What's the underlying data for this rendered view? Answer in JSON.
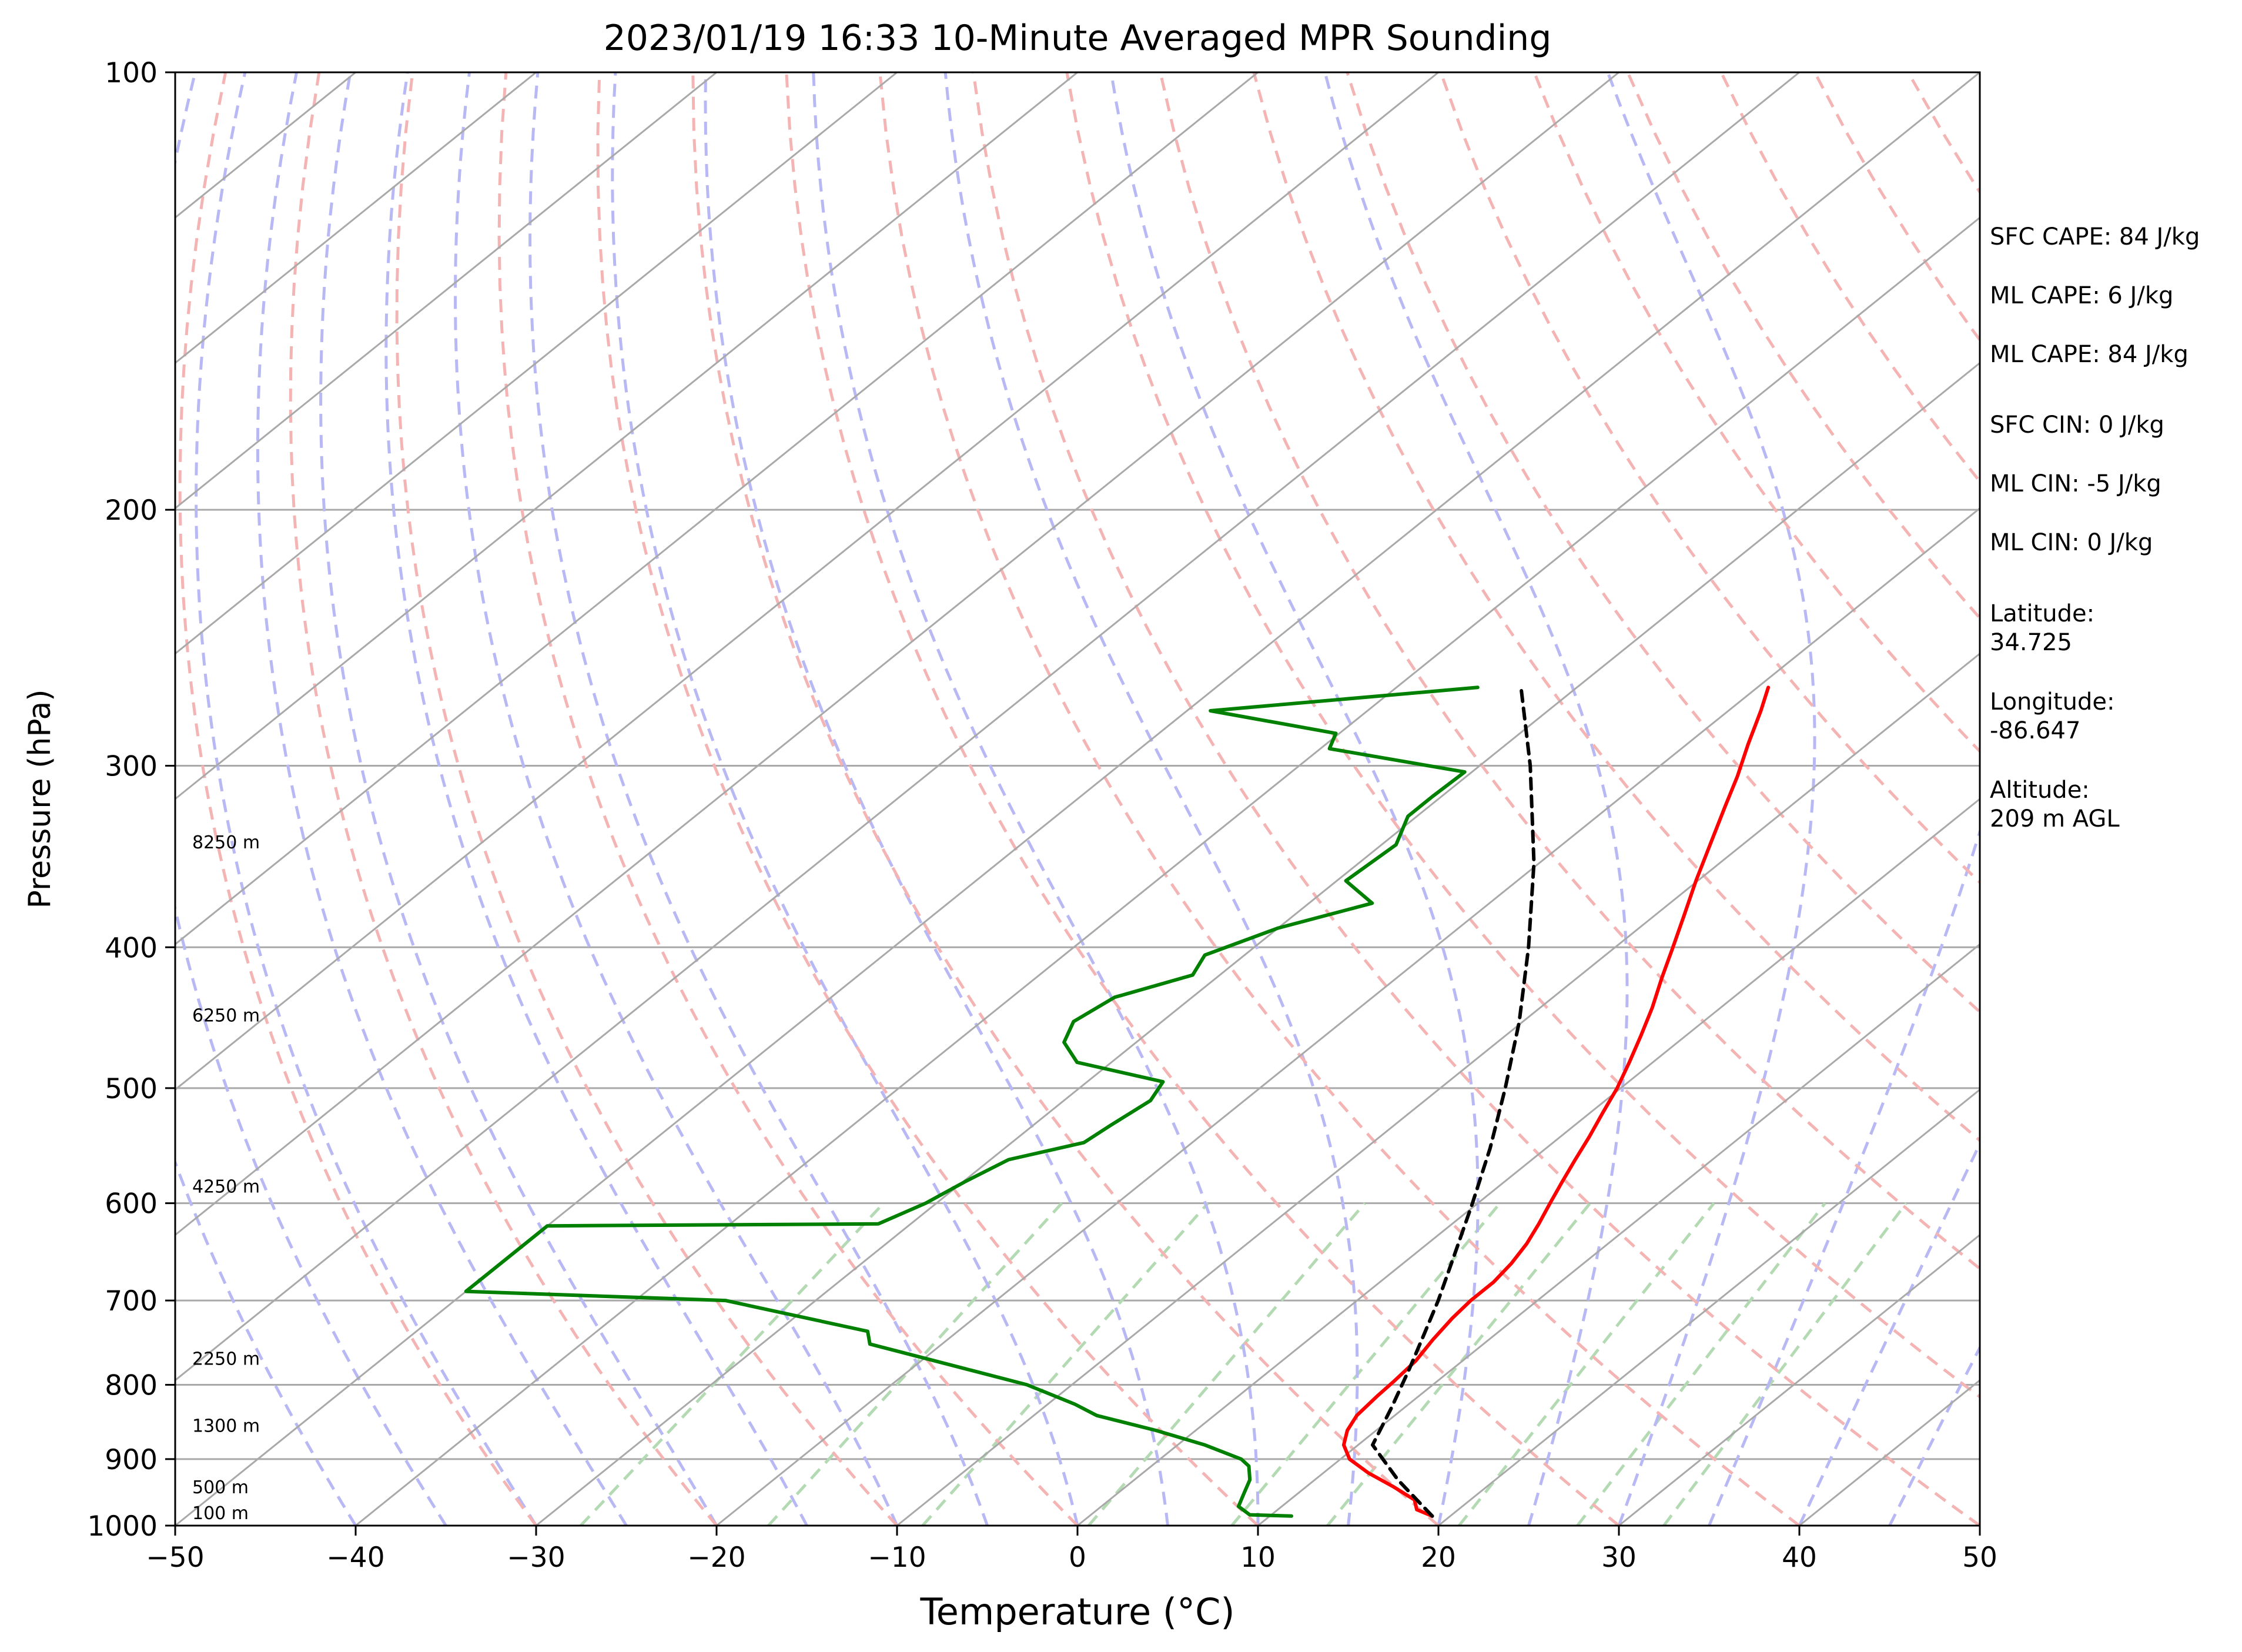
{
  "chart_data": {
    "type": "line",
    "title": "2023/01/19 16:33 10-Minute Averaged MPR Sounding",
    "xlabel": "Temperature (°C)",
    "ylabel": "Pressure (hPa)",
    "xlim": [
      -50,
      50
    ],
    "ylim": [
      1000,
      100
    ],
    "yscale": "log",
    "skew": "skew-T",
    "grid": true,
    "x_ticks": [
      "−50",
      "−40",
      "−30",
      "−20",
      "−10",
      "0",
      "10",
      "20",
      "30",
      "40",
      "50"
    ],
    "y_ticks": [
      "100",
      "200",
      "300",
      "400",
      "500",
      "600",
      "700",
      "800",
      "900",
      "1000"
    ],
    "series": [
      {
        "color": "#ff0000",
        "points": [
          {
            "p": 985,
            "t": 19.0
          },
          {
            "p": 975,
            "t": 17.7
          },
          {
            "p": 960,
            "t": 16.9
          },
          {
            "p": 940,
            "t": 14.8
          },
          {
            "p": 920,
            "t": 12.5
          },
          {
            "p": 900,
            "t": 10.5
          },
          {
            "p": 880,
            "t": 9.2
          },
          {
            "p": 860,
            "t": 8.4
          },
          {
            "p": 840,
            "t": 7.9
          },
          {
            "p": 815,
            "t": 7.7
          },
          {
            "p": 795,
            "t": 7.6
          },
          {
            "p": 770,
            "t": 7.4
          },
          {
            "p": 745,
            "t": 6.9
          },
          {
            "p": 720,
            "t": 6.5
          },
          {
            "p": 700,
            "t": 6.3
          },
          {
            "p": 680,
            "t": 6.3
          },
          {
            "p": 660,
            "t": 6.0
          },
          {
            "p": 640,
            "t": 5.5
          },
          {
            "p": 620,
            "t": 4.8
          },
          {
            "p": 600,
            "t": 4.0
          },
          {
            "p": 580,
            "t": 3.2
          },
          {
            "p": 560,
            "t": 2.4
          },
          {
            "p": 540,
            "t": 1.6
          },
          {
            "p": 520,
            "t": 0.7
          },
          {
            "p": 500,
            "t": -0.2
          },
          {
            "p": 480,
            "t": -1.3
          },
          {
            "p": 460,
            "t": -2.5
          },
          {
            "p": 440,
            "t": -3.8
          },
          {
            "p": 420,
            "t": -5.3
          },
          {
            "p": 400,
            "t": -6.8
          },
          {
            "p": 380,
            "t": -8.4
          },
          {
            "p": 360,
            "t": -10.1
          },
          {
            "p": 340,
            "t": -11.8
          },
          {
            "p": 320,
            "t": -13.6
          },
          {
            "p": 305,
            "t": -15.0
          },
          {
            "p": 290,
            "t": -16.6
          },
          {
            "p": 275,
            "t": -18.2
          },
          {
            "p": 265,
            "t": -19.4
          }
        ]
      },
      {
        "color": "#008000",
        "points": [
          {
            "p": 985,
            "t": 11.2
          },
          {
            "p": 983,
            "t": 8.8
          },
          {
            "p": 970,
            "t": 7.6
          },
          {
            "p": 950,
            "t": 7.0
          },
          {
            "p": 930,
            "t": 6.4
          },
          {
            "p": 910,
            "t": 5.4
          },
          {
            "p": 900,
            "t": 4.5
          },
          {
            "p": 880,
            "t": 1.5
          },
          {
            "p": 860,
            "t": -2.2
          },
          {
            "p": 840,
            "t": -6.5
          },
          {
            "p": 825,
            "t": -8.5
          },
          {
            "p": 800,
            "t": -12.5
          },
          {
            "p": 780,
            "t": -17.0
          },
          {
            "p": 750,
            "t": -24.0
          },
          {
            "p": 735,
            "t": -25.0
          },
          {
            "p": 700,
            "t": -35.0
          },
          {
            "p": 690,
            "t": -50.0
          },
          {
            "p": 622,
            "t": -50.0
          },
          {
            "p": 620,
            "t": -31.8
          },
          {
            "p": 600,
            "t": -30.6
          },
          {
            "p": 580,
            "t": -29.9
          },
          {
            "p": 560,
            "t": -29.0
          },
          {
            "p": 545,
            "t": -26.0
          },
          {
            "p": 530,
            "t": -25.7
          },
          {
            "p": 510,
            "t": -25.2
          },
          {
            "p": 495,
            "t": -25.8
          },
          {
            "p": 480,
            "t": -31.9
          },
          {
            "p": 465,
            "t": -34.0
          },
          {
            "p": 450,
            "t": -34.9
          },
          {
            "p": 433,
            "t": -34.3
          },
          {
            "p": 418,
            "t": -31.5
          },
          {
            "p": 405,
            "t": -32.2
          },
          {
            "p": 388,
            "t": -30.0
          },
          {
            "p": 373,
            "t": -26.5
          },
          {
            "p": 360,
            "t": -29.5
          },
          {
            "p": 340,
            "t": -29.2
          },
          {
            "p": 325,
            "t": -30.5
          },
          {
            "p": 315,
            "t": -30.5
          },
          {
            "p": 303,
            "t": -30.4
          },
          {
            "p": 292,
            "t": -39.5
          },
          {
            "p": 285,
            "t": -40.2
          },
          {
            "p": 275,
            "t": -48.7
          },
          {
            "p": 265,
            "t": -35.5
          }
        ]
      },
      {
        "color": "#000000",
        "dashed": true,
        "points": [
          {
            "p": 985,
            "t": 19.0
          },
          {
            "p": 930,
            "t": 14.6
          },
          {
            "p": 880,
            "t": 10.8
          },
          {
            "p": 830,
            "t": 9.3
          },
          {
            "p": 780,
            "t": 7.6
          },
          {
            "p": 740,
            "t": 6.1
          },
          {
            "p": 700,
            "t": 4.5
          },
          {
            "p": 650,
            "t": 2.2
          },
          {
            "p": 600,
            "t": -0.3
          },
          {
            "p": 550,
            "t": -3.1
          },
          {
            "p": 500,
            "t": -6.4
          },
          {
            "p": 450,
            "t": -10.2
          },
          {
            "p": 400,
            "t": -14.8
          },
          {
            "p": 350,
            "t": -20.3
          },
          {
            "p": 300,
            "t": -27.2
          },
          {
            "p": 265,
            "t": -33.1
          }
        ]
      }
    ],
    "height_labels": [
      {
        "p": 990,
        "text": "100 m"
      },
      {
        "p": 950,
        "text": "500 m"
      },
      {
        "p": 862,
        "text": "1300 m"
      },
      {
        "p": 775,
        "text": "2250 m"
      },
      {
        "p": 590,
        "text": "4250 m"
      },
      {
        "p": 450,
        "text": "6250 m"
      },
      {
        "p": 342,
        "text": "8250 m"
      }
    ],
    "info_panel": {
      "sfc_cape": "SFC CAPE: 84 J/kg",
      "ml_cape_1": "ML CAPE: 6 J/kg",
      "ml_cape_2": "ML CAPE: 84 J/kg",
      "sfc_cin": "SFC CIN: 0 J/kg",
      "ml_cin_1": "ML CIN: -5 J/kg",
      "ml_cin_2": "ML CIN: 0 J/kg",
      "latitude_label": "Latitude:",
      "latitude_value": "34.725",
      "longitude_label": "Longitude:",
      "longitude_value": "-86.647",
      "altitude_label": "Altitude:",
      "altitude_value": "209 m AGL"
    },
    "reference_lines": {
      "isotherms_color": "#a9a9a9",
      "dry_adiabats_color": "#f4b4b4",
      "moist_adiabats_color": "#b8b8f4",
      "mixing_ratio_color": "#b4dab4"
    }
  }
}
